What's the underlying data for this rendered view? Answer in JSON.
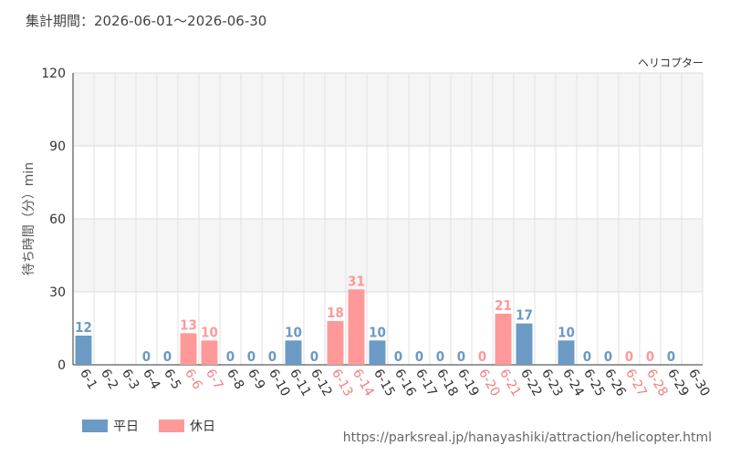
{
  "header": {
    "period": "集計期間：2026-06-01～2026-06-30"
  },
  "attraction": "ヘリコプター",
  "legend": {
    "weekday": "平日",
    "holiday": "休日"
  },
  "colors": {
    "weekday": "#6b9ac4",
    "holiday": "#ff9999",
    "grid_band": "#f5f5f5"
  },
  "source": "https://parksreal.jp/hanayashiki/attraction/helicopter.html",
  "chart_data": {
    "type": "bar",
    "title": "",
    "xlabel": "",
    "ylabel": "待ち時間（分）min",
    "ylim": [
      0,
      120
    ],
    "yticks": [
      0,
      30,
      60,
      90,
      120
    ],
    "grid": true,
    "legend_position": "bottom-left",
    "categories": [
      "6-1",
      "6-2",
      "6-3",
      "6-4",
      "6-5",
      "6-6",
      "6-7",
      "6-8",
      "6-9",
      "6-10",
      "6-11",
      "6-12",
      "6-13",
      "6-14",
      "6-15",
      "6-16",
      "6-17",
      "6-18",
      "6-19",
      "6-20",
      "6-21",
      "6-22",
      "6-23",
      "6-24",
      "6-25",
      "6-26",
      "6-27",
      "6-28",
      "6-29",
      "6-30"
    ],
    "values": [
      12,
      null,
      null,
      0,
      0,
      13,
      10,
      0,
      0,
      0,
      10,
      0,
      18,
      31,
      10,
      0,
      0,
      0,
      0,
      0,
      21,
      17,
      null,
      10,
      0,
      0,
      0,
      0,
      0,
      null
    ],
    "day_types": [
      "weekday",
      "weekday",
      "weekday",
      "weekday",
      "weekday",
      "holiday",
      "holiday",
      "weekday",
      "weekday",
      "weekday",
      "weekday",
      "weekday",
      "holiday",
      "holiday",
      "weekday",
      "weekday",
      "weekday",
      "weekday",
      "weekday",
      "holiday",
      "holiday",
      "weekday",
      "weekday",
      "weekday",
      "weekday",
      "weekday",
      "holiday",
      "holiday",
      "weekday",
      "weekday"
    ]
  }
}
